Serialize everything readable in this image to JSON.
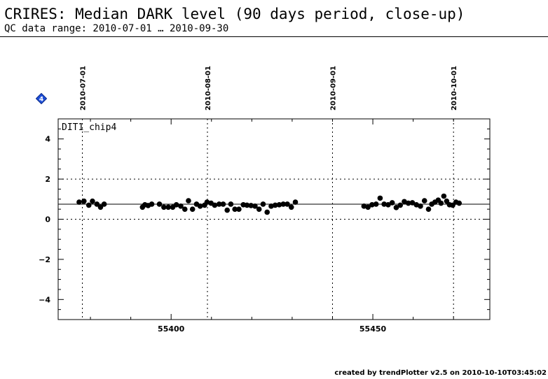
{
  "header": {
    "title": "CRIRES: Median DARK level (90 days period, close-up)",
    "subtitle": "QC data range: 2010-07-01 … 2010-09-30"
  },
  "footer": {
    "text": "created by trendPlotter v2.5 on 2010-10-10T03:45:02"
  },
  "marker": {
    "label": "4",
    "color": "#1e4fd8"
  },
  "chart_data": {
    "type": "scatter",
    "title": "",
    "xlabel": "",
    "ylabel": "",
    "xlim": [
      55372,
      55479
    ],
    "ylim": [
      -5,
      5
    ],
    "x_ticks": [
      55400,
      55450
    ],
    "y_ticks": [
      -4,
      -2,
      0,
      2,
      4
    ],
    "grid": true,
    "legend": "none",
    "panel_label": "DIT1_chip4",
    "reference_lines_y": [
      2,
      0
    ],
    "median_line_y": 0.75,
    "date_markers": [
      {
        "label": "2010-07-01",
        "x": 55378
      },
      {
        "label": "2010-08-01",
        "x": 55409
      },
      {
        "label": "2010-09-01",
        "x": 55440
      },
      {
        "label": "2010-10-01",
        "x": 55470
      }
    ],
    "series": [
      {
        "points": [
          [
            55377.2,
            0.85
          ],
          [
            55378.4,
            0.9
          ],
          [
            55379.6,
            0.7
          ],
          [
            55380.5,
            0.9
          ],
          [
            55381.6,
            0.75
          ],
          [
            55382.5,
            0.6
          ],
          [
            55383.4,
            0.75
          ],
          [
            55392.9,
            0.6
          ],
          [
            55393.5,
            0.72
          ],
          [
            55394.3,
            0.68
          ],
          [
            55395.2,
            0.75
          ],
          [
            55397.1,
            0.75
          ],
          [
            55398.2,
            0.6
          ],
          [
            55399.3,
            0.6
          ],
          [
            55400.4,
            0.6
          ],
          [
            55401.3,
            0.72
          ],
          [
            55402.4,
            0.65
          ],
          [
            55403.4,
            0.5
          ],
          [
            55404.3,
            0.92
          ],
          [
            55405.3,
            0.5
          ],
          [
            55406.3,
            0.75
          ],
          [
            55407.2,
            0.65
          ],
          [
            55408.3,
            0.7
          ],
          [
            55408.9,
            0.85
          ],
          [
            55409.9,
            0.8
          ],
          [
            55410.8,
            0.7
          ],
          [
            55411.9,
            0.75
          ],
          [
            55412.9,
            0.75
          ],
          [
            55413.9,
            0.45
          ],
          [
            55414.8,
            0.75
          ],
          [
            55415.8,
            0.5
          ],
          [
            55416.8,
            0.5
          ],
          [
            55417.9,
            0.72
          ],
          [
            55418.8,
            0.7
          ],
          [
            55419.8,
            0.68
          ],
          [
            55420.8,
            0.65
          ],
          [
            55421.8,
            0.5
          ],
          [
            55422.8,
            0.75
          ],
          [
            55423.8,
            0.35
          ],
          [
            55424.8,
            0.65
          ],
          [
            55425.8,
            0.7
          ],
          [
            55426.8,
            0.72
          ],
          [
            55427.8,
            0.75
          ],
          [
            55428.8,
            0.75
          ],
          [
            55429.8,
            0.6
          ],
          [
            55430.8,
            0.85
          ],
          [
            55447.8,
            0.65
          ],
          [
            55448.8,
            0.6
          ],
          [
            55449.8,
            0.72
          ],
          [
            55450.8,
            0.75
          ],
          [
            55451.8,
            1.05
          ],
          [
            55452.8,
            0.75
          ],
          [
            55453.8,
            0.72
          ],
          [
            55454.8,
            0.82
          ],
          [
            55455.8,
            0.58
          ],
          [
            55456.8,
            0.7
          ],
          [
            55457.8,
            0.88
          ],
          [
            55458.8,
            0.8
          ],
          [
            55459.8,
            0.82
          ],
          [
            55460.8,
            0.72
          ],
          [
            55461.8,
            0.65
          ],
          [
            55462.8,
            0.92
          ],
          [
            55463.8,
            0.5
          ],
          [
            55464.6,
            0.75
          ],
          [
            55465.4,
            0.85
          ],
          [
            55466.2,
            0.95
          ],
          [
            55466.9,
            0.8
          ],
          [
            55467.6,
            1.15
          ],
          [
            55468.3,
            0.9
          ],
          [
            55469.0,
            0.72
          ],
          [
            55469.8,
            0.7
          ],
          [
            55470.6,
            0.85
          ],
          [
            55471.4,
            0.8
          ]
        ]
      }
    ]
  }
}
